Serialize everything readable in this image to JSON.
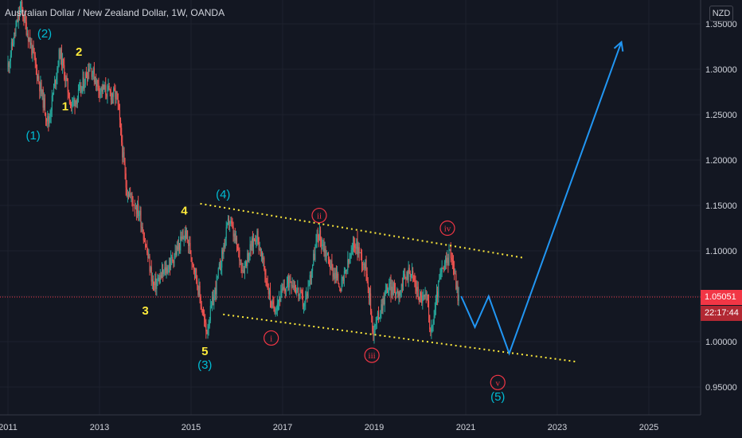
{
  "header": {
    "title": "Australian Dollar / New Zealand Dollar, 1W, OANDA",
    "currency": "NZD"
  },
  "price_scale": {
    "ticks": [
      "1.35000",
      "1.30000",
      "1.25000",
      "1.20000",
      "1.15000",
      "1.10000",
      "1.05000",
      "1.00000",
      "0.95000"
    ],
    "current_price": "1.05051",
    "countdown": "22:17:44"
  },
  "time_scale": {
    "ticks": [
      "2011",
      "2013",
      "2015",
      "2017",
      "2019",
      "2021",
      "2023",
      "2025"
    ]
  },
  "annotations": {
    "yellow_wave": [
      "1",
      "2",
      "3",
      "4",
      "5"
    ],
    "cyan_wave": [
      "(1)",
      "(2)",
      "(3)",
      "(4)",
      "(5)"
    ],
    "red_wave": [
      "i",
      "ii",
      "iii",
      "iv",
      "v"
    ]
  },
  "colors": {
    "background": "#131722",
    "bull": "#26a69a",
    "bear": "#ef5350",
    "yellow": "#ffeb3b",
    "cyan": "#00bcd4",
    "red": "#f23645",
    "projection": "#2196f3",
    "axis_text": "#d1d4dc",
    "price_tag": "#f23645",
    "countdown_tag": "#b22833"
  },
  "chart_data": {
    "type": "candlestick",
    "symbol": "AUDNZD",
    "interval": "1W",
    "y_range": [
      0.93,
      1.37
    ],
    "x_range": [
      2011.0,
      2026.0
    ],
    "last_price": 1.05051,
    "swing_path": [
      {
        "t": 2011.0,
        "p": 1.3
      },
      {
        "t": 2011.3,
        "p": 1.37
      },
      {
        "t": 2011.55,
        "p": 1.32
      },
      {
        "t": 2011.9,
        "p": 1.24
      },
      {
        "t": 2012.15,
        "p": 1.32
      },
      {
        "t": 2012.4,
        "p": 1.26
      },
      {
        "t": 2012.6,
        "p": 1.275
      },
      {
        "t": 2012.8,
        "p": 1.305
      },
      {
        "t": 2013.0,
        "p": 1.28
      },
      {
        "t": 2013.4,
        "p": 1.27
      },
      {
        "t": 2013.6,
        "p": 1.17
      },
      {
        "t": 2013.9,
        "p": 1.14
      },
      {
        "t": 2014.2,
        "p": 1.06
      },
      {
        "t": 2014.55,
        "p": 1.085
      },
      {
        "t": 2014.9,
        "p": 1.12
      },
      {
        "t": 2015.1,
        "p": 1.08
      },
      {
        "t": 2015.35,
        "p": 1.01
      },
      {
        "t": 2015.6,
        "p": 1.07
      },
      {
        "t": 2015.85,
        "p": 1.135
      },
      {
        "t": 2016.15,
        "p": 1.08
      },
      {
        "t": 2016.45,
        "p": 1.12
      },
      {
        "t": 2016.8,
        "p": 1.035
      },
      {
        "t": 2017.2,
        "p": 1.07
      },
      {
        "t": 2017.5,
        "p": 1.04
      },
      {
        "t": 2017.8,
        "p": 1.12
      },
      {
        "t": 2018.1,
        "p": 1.08
      },
      {
        "t": 2018.3,
        "p": 1.06
      },
      {
        "t": 2018.6,
        "p": 1.11
      },
      {
        "t": 2018.85,
        "p": 1.08
      },
      {
        "t": 2019.0,
        "p": 1.01
      },
      {
        "t": 2019.3,
        "p": 1.06
      },
      {
        "t": 2019.55,
        "p": 1.055
      },
      {
        "t": 2019.8,
        "p": 1.08
      },
      {
        "t": 2020.0,
        "p": 1.05
      },
      {
        "t": 2020.2,
        "p": 1.045
      },
      {
        "t": 2020.25,
        "p": 1.005
      },
      {
        "t": 2020.45,
        "p": 1.07
      },
      {
        "t": 2020.7,
        "p": 1.1
      },
      {
        "t": 2020.85,
        "p": 1.05
      }
    ],
    "upper_trendline": [
      {
        "t": 2015.2,
        "p": 1.152
      },
      {
        "t": 2022.3,
        "p": 1.092
      }
    ],
    "lower_trendline": [
      {
        "t": 2015.7,
        "p": 1.03
      },
      {
        "t": 2023.4,
        "p": 0.978
      }
    ],
    "projection_path": [
      {
        "t": 2020.9,
        "p": 1.05
      },
      {
        "t": 2021.2,
        "p": 1.016
      },
      {
        "t": 2021.5,
        "p": 1.05
      },
      {
        "t": 2021.95,
        "p": 0.987
      },
      {
        "t": 2024.4,
        "p": 1.33
      }
    ]
  }
}
